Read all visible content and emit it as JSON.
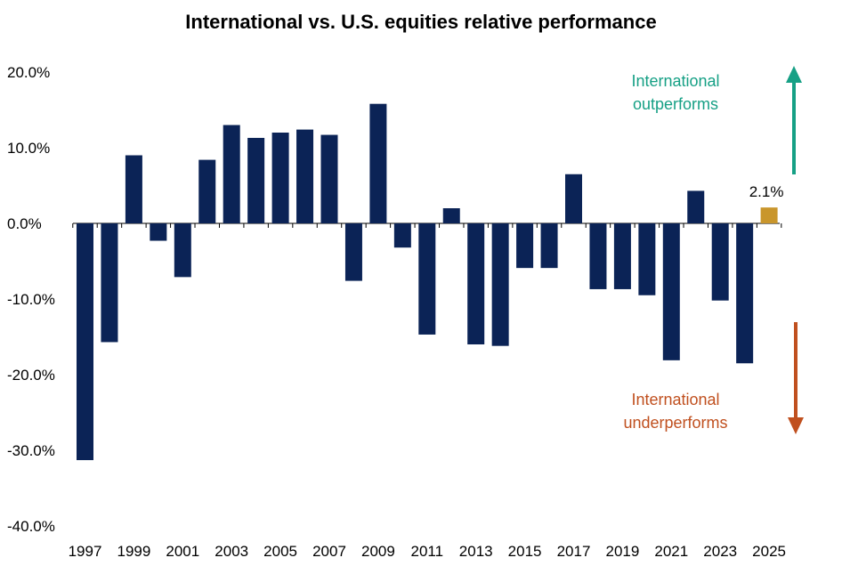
{
  "chart_data": {
    "type": "bar",
    "title": "International vs. U.S. equities relative performance",
    "xlabel": "",
    "ylabel": "",
    "ylim": [
      -40,
      20
    ],
    "y_ticks": [
      20,
      10,
      0,
      -10,
      -20,
      -30,
      -40
    ],
    "y_tick_labels": [
      "20.0%",
      "10.0%",
      "0.0%",
      "-10.0%",
      "-20.0%",
      "-30.0%",
      "-40.0%"
    ],
    "categories": [
      "1997",
      "1998",
      "1999",
      "2000",
      "2001",
      "2002",
      "2003",
      "2004",
      "2005",
      "2006",
      "2007",
      "2008",
      "2009",
      "2010",
      "2011",
      "2012",
      "2013",
      "2014",
      "2015",
      "2016",
      "2017",
      "2018",
      "2019",
      "2020",
      "2021",
      "2022",
      "2023",
      "2024",
      "2025"
    ],
    "x_tick_labels": [
      "1997",
      "1999",
      "2001",
      "2003",
      "2005",
      "2007",
      "2009",
      "2011",
      "2013",
      "2015",
      "2017",
      "2019",
      "2021",
      "2023",
      "2025"
    ],
    "values": [
      -31.3,
      -15.7,
      9.0,
      -2.3,
      -7.1,
      8.4,
      13.0,
      11.3,
      12.0,
      12.4,
      11.7,
      -7.6,
      15.8,
      -3.2,
      -14.7,
      2.0,
      -16.0,
      -16.2,
      -5.9,
      -5.9,
      6.5,
      -8.7,
      -8.7,
      -9.5,
      -18.1,
      4.3,
      -10.2,
      -18.5,
      2.1
    ],
    "bar_color": "#0b2356",
    "highlight_color": "#c9962c",
    "highlight_category": "2025",
    "data_labels": [
      {
        "category": "2025",
        "text": "2.1%"
      }
    ],
    "grid": false,
    "annotations": {
      "outperform": {
        "lines": [
          "International",
          "outperforms"
        ],
        "color": "#16a085",
        "arrow": "up"
      },
      "underperform": {
        "lines": [
          "International",
          "underperforms"
        ],
        "color": "#c0501f",
        "arrow": "down"
      }
    }
  }
}
